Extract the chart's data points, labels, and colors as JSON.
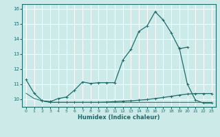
{
  "xlabel": "Humidex (Indice chaleur)",
  "bg_color": "#cceae8",
  "grid_color": "#ffffff",
  "line_color": "#1a6b6b",
  "xlim": [
    -0.5,
    23.5
  ],
  "ylim": [
    9.5,
    16.3
  ],
  "xticks": [
    0,
    1,
    2,
    3,
    4,
    5,
    6,
    7,
    8,
    9,
    10,
    11,
    12,
    13,
    14,
    15,
    16,
    17,
    18,
    19,
    20,
    21,
    22,
    23
  ],
  "yticks": [
    10,
    11,
    12,
    13,
    14,
    15,
    16
  ],
  "line1_x": [
    0,
    1,
    2,
    3,
    4,
    5,
    6,
    7,
    8,
    9,
    10,
    11,
    12,
    13,
    14,
    15,
    16,
    17,
    18,
    19,
    20
  ],
  "line1_y": [
    11.3,
    10.4,
    9.9,
    9.85,
    10.05,
    10.15,
    10.6,
    11.15,
    11.05,
    11.1,
    11.1,
    11.1,
    12.6,
    13.3,
    14.5,
    14.85,
    15.8,
    15.25,
    14.4,
    13.35,
    13.45
  ],
  "line2_x": [
    2,
    3,
    4,
    5,
    6,
    7,
    8,
    9,
    10,
    11,
    12,
    13,
    14,
    15,
    16,
    17,
    18,
    19,
    20,
    21,
    22,
    23
  ],
  "line2_y": [
    9.9,
    9.8,
    9.8,
    9.8,
    9.8,
    9.8,
    9.8,
    9.8,
    9.82,
    9.85,
    9.88,
    9.9,
    9.95,
    9.98,
    10.05,
    10.12,
    10.2,
    10.28,
    10.35,
    10.38,
    10.38,
    10.38
  ],
  "line3_x": [
    0,
    1,
    2,
    3,
    4,
    5,
    6,
    7,
    8,
    9,
    10,
    11,
    12,
    13,
    14,
    15,
    16,
    17,
    18,
    19,
    20,
    21,
    22,
    23
  ],
  "line3_y": [
    10.4,
    10.05,
    9.9,
    9.8,
    9.8,
    9.8,
    9.8,
    9.8,
    9.8,
    9.8,
    9.8,
    9.8,
    9.8,
    9.8,
    9.8,
    9.8,
    9.8,
    9.8,
    9.8,
    9.8,
    9.8,
    9.8,
    9.8,
    9.8
  ],
  "line4_x": [
    19,
    20,
    21,
    22,
    23
  ],
  "line4_y": [
    13.4,
    11.0,
    9.95,
    9.75,
    9.75
  ],
  "marker": "+"
}
